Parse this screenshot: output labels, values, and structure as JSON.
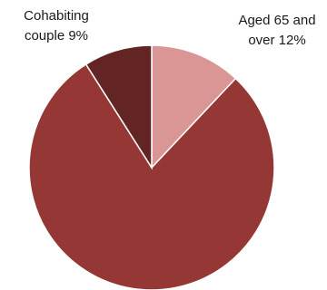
{
  "chart_data": {
    "type": "pie",
    "title": "",
    "slices": [
      {
        "label_lines": [
          "Aged 65 and",
          "over 12%"
        ],
        "value": 12,
        "color": "#d99694"
      },
      {
        "label_lines": [],
        "value": 79,
        "color": "#953735"
      },
      {
        "label_lines": [
          "Cohabiting",
          "couple 9%"
        ],
        "value": 9,
        "color": "#632523"
      }
    ],
    "start_angle_deg": 0,
    "direction": "clockwise",
    "slice_border_color": "#ffffff"
  }
}
